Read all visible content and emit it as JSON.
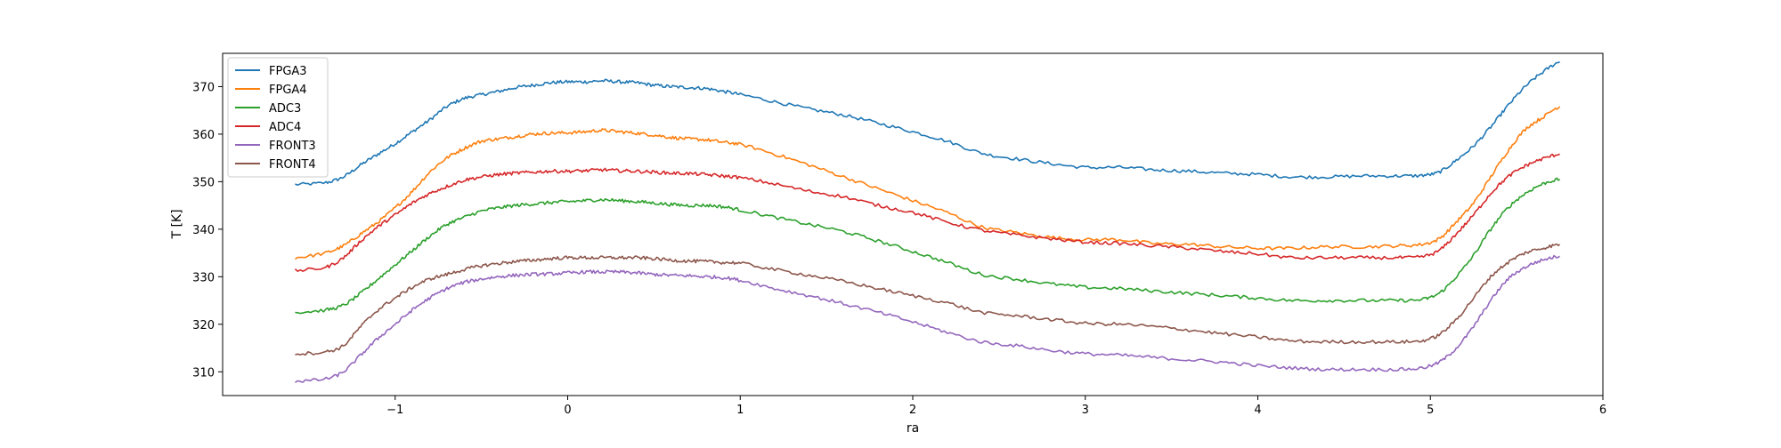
{
  "chart_data": {
    "type": "line",
    "title": "",
    "xlabel": "ra",
    "ylabel": "T [K]",
    "xlim": [
      -2.0,
      6.0
    ],
    "ylim": [
      305,
      377
    ],
    "x_ticks": [
      -1,
      0,
      1,
      2,
      3,
      4,
      5,
      6
    ],
    "x_tick_labels": [
      "−1",
      "0",
      "1",
      "2",
      "3",
      "4",
      "5",
      "6"
    ],
    "y_ticks": [
      310,
      320,
      330,
      340,
      350,
      360,
      370
    ],
    "y_tick_labels": [
      "310",
      "320",
      "330",
      "340",
      "350",
      "360",
      "370"
    ],
    "grid": false,
    "legend_position": "top-left",
    "x": [
      -1.58,
      -1.4,
      -1.3,
      -1.2,
      -1.1,
      -1.0,
      -0.9,
      -0.8,
      -0.7,
      -0.6,
      -0.5,
      -0.4,
      -0.3,
      -0.2,
      -0.1,
      0.0,
      0.1,
      0.2,
      0.3,
      0.4,
      0.5,
      0.6,
      0.7,
      0.8,
      0.9,
      1.0,
      1.2,
      1.4,
      1.6,
      1.8,
      2.0,
      2.2,
      2.4,
      2.6,
      2.8,
      3.0,
      3.2,
      3.4,
      3.6,
      3.8,
      4.0,
      4.2,
      4.4,
      4.6,
      4.8,
      4.95,
      5.05,
      5.15,
      5.25,
      5.35,
      5.45,
      5.55,
      5.65,
      5.75
    ],
    "series": [
      {
        "name": "FPGA3",
        "color": "#1f77b4",
        "values": [
          349.4,
          349.8,
          351.0,
          353.5,
          355.8,
          358.0,
          360.5,
          363.0,
          365.8,
          367.5,
          368.3,
          369.0,
          369.8,
          370.3,
          370.8,
          371.0,
          371.0,
          371.2,
          371.0,
          370.8,
          370.3,
          370.0,
          369.8,
          369.6,
          369.0,
          368.3,
          366.8,
          365.3,
          364.0,
          362.3,
          360.5,
          358.5,
          356.0,
          354.8,
          353.8,
          353.0,
          353.0,
          352.5,
          352.2,
          351.8,
          351.5,
          351.0,
          351.0,
          351.2,
          351.2,
          351.3,
          352.0,
          354.5,
          357.5,
          361.5,
          366.0,
          370.0,
          373.0,
          375.2
        ]
      },
      {
        "name": "FPGA4",
        "color": "#ff7f0e",
        "values": [
          334.0,
          335.0,
          336.5,
          339.0,
          341.5,
          344.5,
          348.0,
          352.0,
          355.0,
          357.0,
          358.5,
          359.0,
          359.5,
          360.0,
          360.2,
          360.3,
          360.5,
          360.8,
          360.5,
          360.2,
          359.8,
          359.3,
          359.0,
          358.8,
          358.3,
          357.8,
          355.8,
          353.5,
          351.0,
          348.5,
          346.0,
          343.5,
          340.5,
          339.3,
          338.3,
          337.8,
          337.8,
          337.0,
          336.8,
          336.3,
          336.0,
          336.0,
          336.3,
          336.3,
          336.5,
          336.8,
          338.0,
          341.5,
          345.5,
          351.0,
          356.5,
          361.0,
          363.5,
          365.8
        ]
      },
      {
        "name": "ADC3",
        "color": "#2ca02c",
        "values": [
          322.5,
          323.0,
          324.0,
          326.5,
          329.5,
          332.5,
          335.5,
          338.5,
          341.0,
          342.5,
          343.8,
          344.5,
          345.0,
          345.3,
          345.6,
          345.8,
          346.0,
          346.2,
          346.0,
          345.8,
          345.5,
          345.2,
          345.0,
          345.0,
          344.7,
          344.0,
          342.5,
          341.0,
          339.5,
          337.5,
          335.3,
          333.0,
          330.5,
          329.5,
          328.5,
          327.8,
          327.5,
          327.0,
          326.5,
          326.0,
          325.5,
          325.0,
          325.0,
          325.0,
          325.0,
          325.2,
          326.5,
          330.0,
          334.5,
          340.0,
          344.5,
          347.5,
          349.5,
          350.5
        ]
      },
      {
        "name": "ADC4",
        "color": "#d62728",
        "values": [
          331.3,
          332.0,
          334.0,
          337.5,
          340.5,
          343.0,
          345.5,
          347.5,
          349.0,
          350.3,
          351.0,
          351.5,
          351.8,
          352.0,
          352.2,
          352.2,
          352.3,
          352.5,
          352.3,
          352.2,
          352.0,
          351.8,
          351.7,
          351.5,
          351.2,
          350.8,
          349.5,
          348.0,
          346.8,
          345.0,
          343.5,
          341.5,
          339.8,
          338.8,
          338.0,
          337.3,
          337.0,
          336.5,
          336.0,
          335.3,
          334.8,
          334.0,
          334.0,
          334.0,
          334.0,
          334.2,
          335.5,
          339.0,
          343.0,
          347.5,
          351.0,
          353.3,
          354.8,
          355.8
        ]
      },
      {
        "name": "FRONT3",
        "color": "#9467bd",
        "values": [
          308.0,
          308.5,
          310.0,
          313.5,
          317.0,
          320.0,
          323.0,
          325.5,
          327.5,
          328.8,
          329.5,
          330.0,
          330.3,
          330.5,
          330.6,
          330.8,
          331.0,
          331.0,
          331.0,
          330.8,
          330.5,
          330.3,
          330.2,
          330.0,
          329.8,
          329.2,
          327.5,
          326.0,
          324.3,
          322.5,
          320.5,
          318.3,
          316.3,
          315.5,
          314.5,
          313.8,
          313.5,
          313.0,
          312.5,
          312.0,
          311.3,
          310.8,
          310.5,
          310.5,
          310.5,
          310.8,
          312.0,
          315.0,
          319.5,
          325.0,
          329.5,
          332.0,
          333.5,
          334.3
        ]
      },
      {
        "name": "FRONT4",
        "color": "#8c564b",
        "values": [
          313.8,
          314.2,
          315.5,
          319.5,
          323.0,
          325.5,
          327.8,
          329.5,
          330.5,
          331.5,
          332.3,
          332.8,
          333.2,
          333.5,
          333.8,
          334.0,
          334.0,
          334.0,
          334.0,
          334.0,
          333.8,
          333.5,
          333.3,
          333.2,
          333.0,
          332.8,
          331.5,
          330.3,
          329.0,
          327.5,
          326.0,
          324.5,
          322.5,
          321.8,
          321.0,
          320.2,
          320.0,
          319.5,
          318.8,
          318.0,
          317.3,
          316.5,
          316.3,
          316.3,
          316.3,
          316.5,
          317.8,
          321.0,
          325.5,
          330.0,
          333.0,
          335.0,
          336.0,
          336.8
        ]
      }
    ]
  }
}
